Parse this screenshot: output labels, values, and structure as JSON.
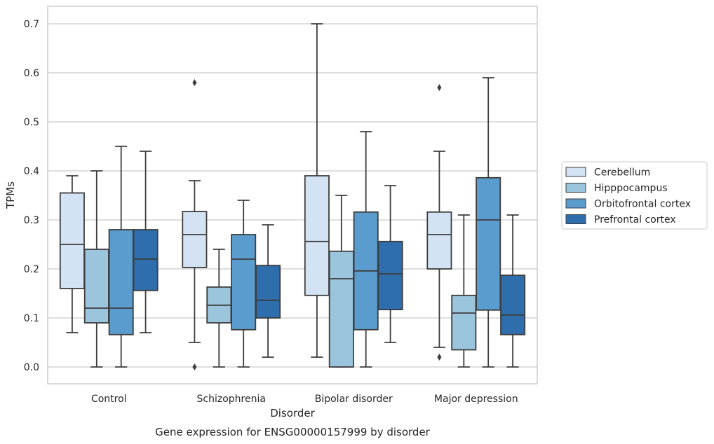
{
  "chart_data": {
    "type": "box",
    "xlabel": "Disorder",
    "ylabel": "TPMs",
    "caption": "Gene expression for ENSG00000157999 by disorder",
    "categories": [
      "Control",
      "Schizophrenia",
      "Bipolar disorder",
      "Major depression"
    ],
    "ylim": [
      -0.035,
      0.735
    ],
    "yticks": [
      0.0,
      0.1,
      0.2,
      0.3,
      0.4,
      0.5,
      0.6,
      0.7
    ],
    "grid": true,
    "legend_position": "right",
    "series": [
      {
        "name": "Cerebellum",
        "color": "#d4e3f3",
        "boxes": [
          {
            "whislo": 0.07,
            "q1": 0.16,
            "med": 0.25,
            "q3": 0.355,
            "whishi": 0.39,
            "fliers": []
          },
          {
            "whislo": 0.05,
            "q1": 0.203,
            "med": 0.27,
            "q3": 0.317,
            "whishi": 0.38,
            "fliers": [
              0.58,
              0.0
            ]
          },
          {
            "whislo": 0.02,
            "q1": 0.146,
            "med": 0.256,
            "q3": 0.39,
            "whishi": 0.7,
            "fliers": []
          },
          {
            "whislo": 0.04,
            "q1": 0.2,
            "med": 0.27,
            "q3": 0.316,
            "whishi": 0.44,
            "fliers": [
              0.57,
              0.02
            ]
          }
        ]
      },
      {
        "name": "Hipppocampus",
        "color": "#9ac5dd",
        "boxes": [
          {
            "whislo": 0.0,
            "q1": 0.09,
            "med": 0.12,
            "q3": 0.24,
            "whishi": 0.4,
            "fliers": []
          },
          {
            "whislo": 0.0,
            "q1": 0.09,
            "med": 0.126,
            "q3": 0.163,
            "whishi": 0.24,
            "fliers": []
          },
          {
            "whislo": 0.0,
            "q1": 0.0,
            "med": 0.18,
            "q3": 0.236,
            "whishi": 0.35,
            "fliers": []
          },
          {
            "whislo": 0.0,
            "q1": 0.035,
            "med": 0.11,
            "q3": 0.146,
            "whishi": 0.31,
            "fliers": []
          }
        ]
      },
      {
        "name": "Orbitofrontal cortex",
        "color": "#5a9ccd",
        "boxes": [
          {
            "whislo": 0.0,
            "q1": 0.066,
            "med": 0.12,
            "q3": 0.28,
            "whishi": 0.45,
            "fliers": []
          },
          {
            "whislo": 0.0,
            "q1": 0.076,
            "med": 0.22,
            "q3": 0.27,
            "whishi": 0.34,
            "fliers": []
          },
          {
            "whislo": 0.0,
            "q1": 0.076,
            "med": 0.196,
            "q3": 0.316,
            "whishi": 0.48,
            "fliers": []
          },
          {
            "whislo": 0.0,
            "q1": 0.116,
            "med": 0.3,
            "q3": 0.386,
            "whishi": 0.59,
            "fliers": []
          }
        ]
      },
      {
        "name": "Prefrontal cortex",
        "color": "#2e6ead",
        "boxes": [
          {
            "whislo": 0.07,
            "q1": 0.156,
            "med": 0.22,
            "q3": 0.28,
            "whishi": 0.44,
            "fliers": []
          },
          {
            "whislo": 0.02,
            "q1": 0.1,
            "med": 0.136,
            "q3": 0.207,
            "whishi": 0.29,
            "fliers": []
          },
          {
            "whislo": 0.05,
            "q1": 0.117,
            "med": 0.19,
            "q3": 0.256,
            "whishi": 0.37,
            "fliers": []
          },
          {
            "whislo": 0.0,
            "q1": 0.066,
            "med": 0.106,
            "q3": 0.187,
            "whishi": 0.31,
            "fliers": []
          }
        ]
      }
    ]
  }
}
